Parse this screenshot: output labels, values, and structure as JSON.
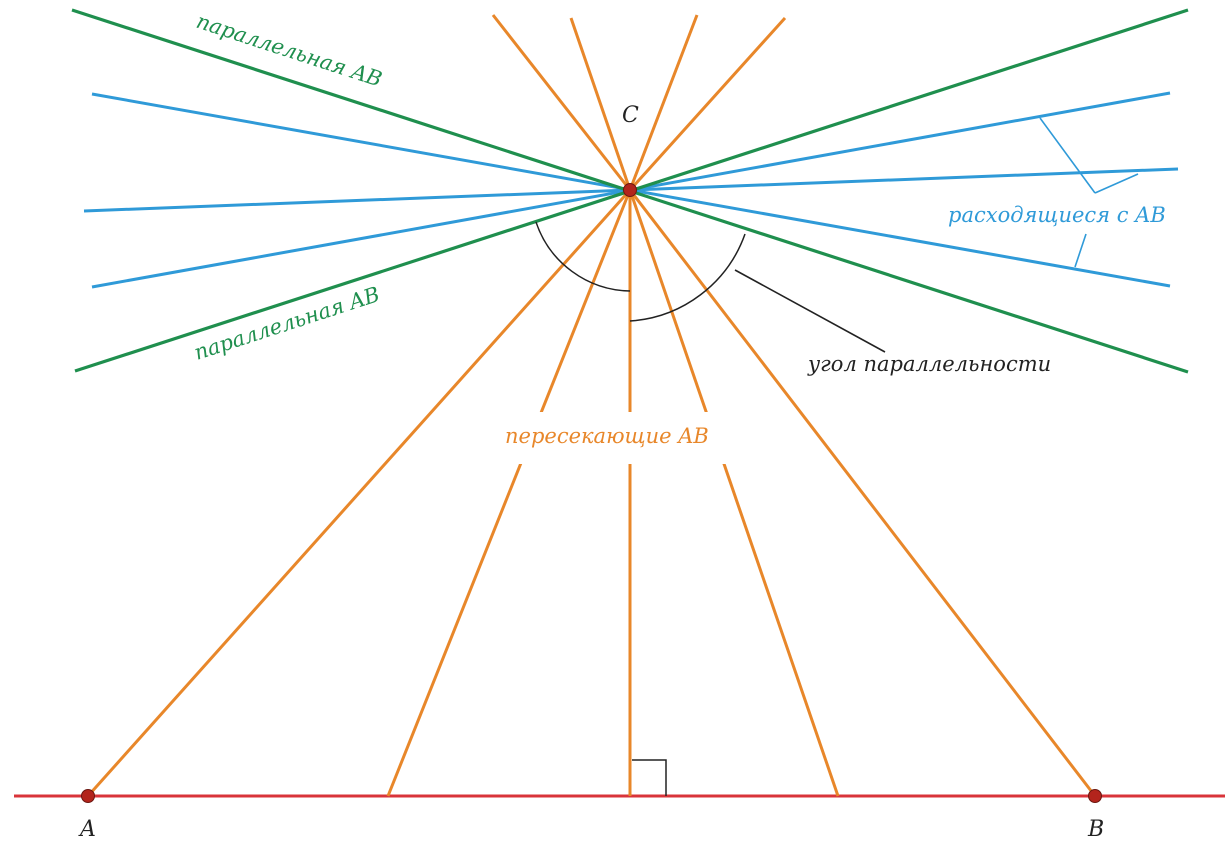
{
  "colors": {
    "intersecting": "#e8872a",
    "parallel": "#1f8f4e",
    "divergent": "#2f9ad8",
    "base_line": "#d9343a",
    "point_fill": "#b3241c",
    "angle_arc": "#222222",
    "label_orange": "#e8872a",
    "label_green": "#1f8f4e",
    "label_blue": "#2f9ad8",
    "label_black": "#222222"
  },
  "points": {
    "A": "A",
    "B": "B",
    "C": "C"
  },
  "labels": {
    "parallel_top": "параллельная  AB",
    "parallel_bottom": "параллельная  AB",
    "divergent": "расходящиеся  с  AB",
    "intersecting": "пересекающие  AB",
    "angle": "угол  параллельности"
  }
}
